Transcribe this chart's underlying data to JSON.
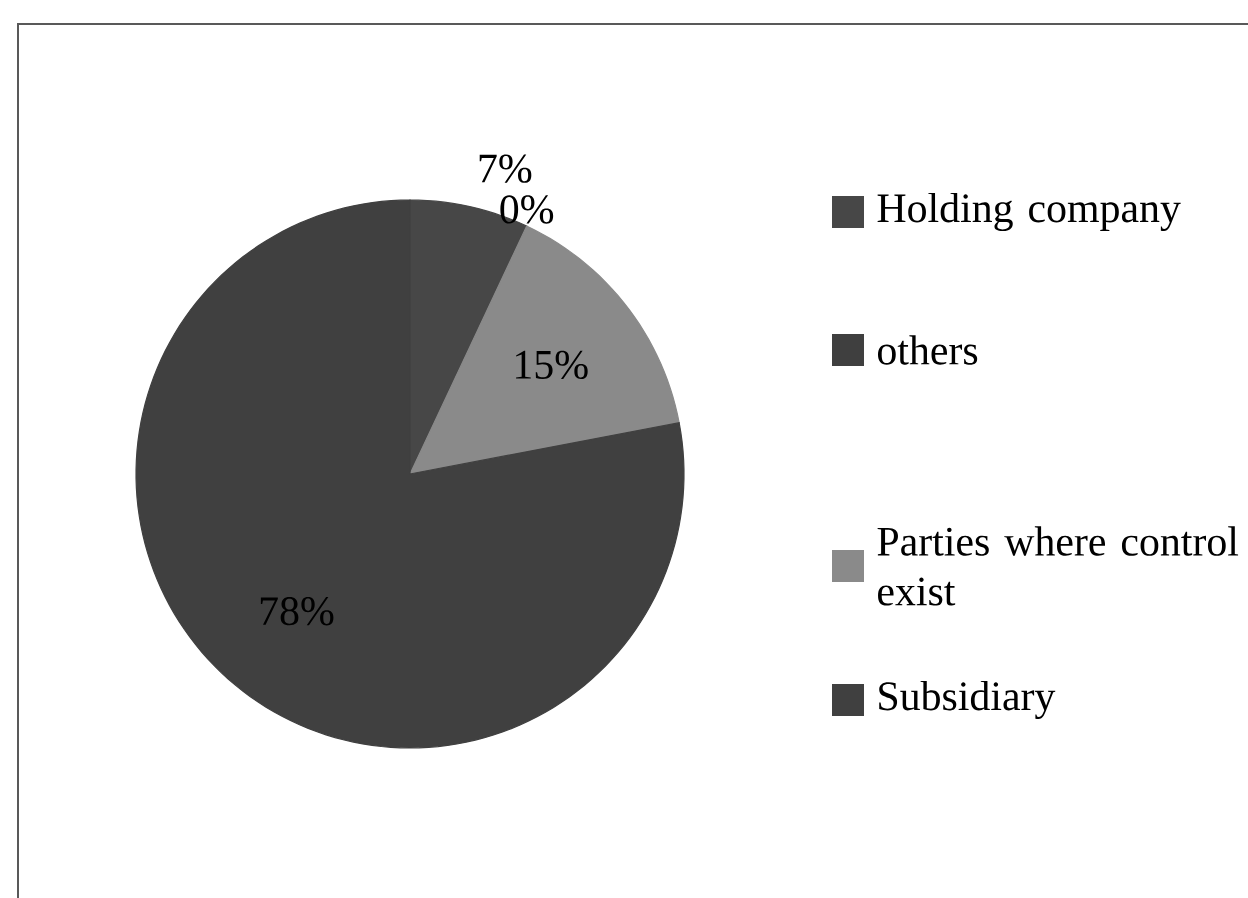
{
  "chart_data": {
    "type": "pie",
    "categories": [
      "Holding company",
      "others",
      "Parties where control exist",
      "Subsidiary"
    ],
    "values": [
      7,
      0,
      15,
      78
    ],
    "colors": [
      "#474747",
      "#3f3f3f",
      "#8a8a8a",
      "#404040"
    ],
    "value_labels": [
      "7%",
      "0%",
      "15%",
      "78%"
    ],
    "legend": "right"
  }
}
